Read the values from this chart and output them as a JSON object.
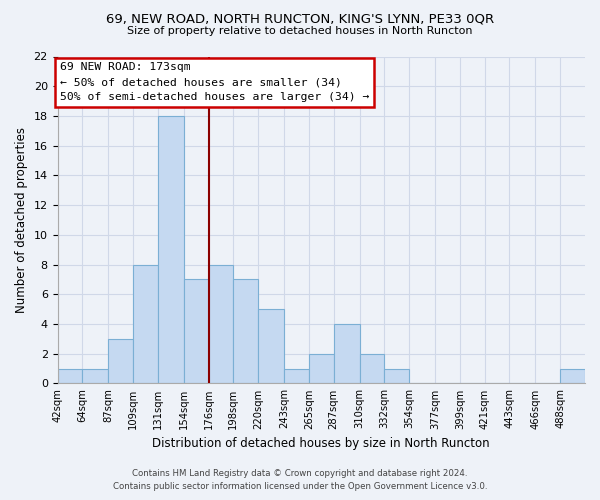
{
  "title": "69, NEW ROAD, NORTH RUNCTON, KING'S LYNN, PE33 0QR",
  "subtitle": "Size of property relative to detached houses in North Runcton",
  "xlabel": "Distribution of detached houses by size in North Runcton",
  "ylabel": "Number of detached properties",
  "bin_labels": [
    "42sqm",
    "64sqm",
    "87sqm",
    "109sqm",
    "131sqm",
    "154sqm",
    "176sqm",
    "198sqm",
    "220sqm",
    "243sqm",
    "265sqm",
    "287sqm",
    "310sqm",
    "332sqm",
    "354sqm",
    "377sqm",
    "399sqm",
    "421sqm",
    "443sqm",
    "466sqm",
    "488sqm"
  ],
  "bar_heights": [
    1,
    1,
    3,
    8,
    18,
    7,
    8,
    7,
    5,
    1,
    2,
    4,
    2,
    1,
    0,
    0,
    0,
    0,
    0,
    0,
    1
  ],
  "bar_color": "#c5d9f1",
  "bar_edge_color": "#7bafd4",
  "grid_color": "#d0d8e8",
  "background_color": "#eef2f8",
  "subject_line_color": "#8b0000",
  "annotation_title": "69 NEW ROAD: 173sqm",
  "annotation_line1": "← 50% of detached houses are smaller (34)",
  "annotation_line2": "50% of semi-detached houses are larger (34) →",
  "annotation_box_color": "#ffffff",
  "annotation_box_edge": "#cc0000",
  "ylim": [
    0,
    22
  ],
  "yticks": [
    0,
    2,
    4,
    6,
    8,
    10,
    12,
    14,
    16,
    18,
    20,
    22
  ],
  "footer1": "Contains HM Land Registry data © Crown copyright and database right 2024.",
  "footer2": "Contains public sector information licensed under the Open Government Licence v3.0.",
  "bin_edges": [
    42,
    64,
    87,
    109,
    131,
    154,
    176,
    198,
    220,
    243,
    265,
    287,
    310,
    332,
    354,
    377,
    399,
    421,
    443,
    466,
    488,
    510
  ]
}
